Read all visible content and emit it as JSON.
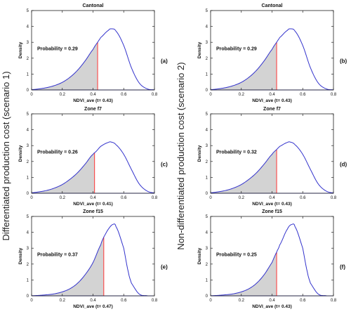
{
  "row_labels": {
    "left": "Differentiated production cost (scenario 1)",
    "right": "Non-differentiated production cost (scenario 2)"
  },
  "colors": {
    "curve": "#3333cc",
    "threshold": "#ff3333",
    "fill": "#d3d3d3",
    "axis": "#222222"
  },
  "chart_data": [
    {
      "type": "area",
      "panel": "(a)",
      "title": "Cantonal",
      "xlabel": "NDVI_ave (t= 0.43)",
      "ylabel": "Density",
      "probability_label": "Probability = 0.29",
      "xlim": [
        0,
        0.8
      ],
      "ylim": [
        0,
        5
      ],
      "xticks": [
        0,
        0.2,
        0.4,
        0.6,
        0.8
      ],
      "yticks": [
        0,
        1,
        2,
        3,
        4,
        5
      ],
      "threshold": 0.43,
      "x": [
        0,
        0.05,
        0.1,
        0.15,
        0.2,
        0.25,
        0.3,
        0.35,
        0.4,
        0.43,
        0.45,
        0.5,
        0.52,
        0.55,
        0.6,
        0.65,
        0.7,
        0.75,
        0.8
      ],
      "y": [
        0.02,
        0.07,
        0.15,
        0.28,
        0.48,
        0.8,
        1.25,
        1.85,
        2.55,
        3.0,
        3.3,
        3.75,
        3.85,
        3.7,
        2.8,
        1.4,
        0.45,
        0.08,
        0.01
      ]
    },
    {
      "type": "area",
      "panel": "(b)",
      "title": "Cantonal",
      "xlabel": "NDVI_ave (t= 0.43)",
      "ylabel": "Density",
      "probability_label": "Probability = 0.29",
      "xlim": [
        0,
        0.8
      ],
      "ylim": [
        0,
        5
      ],
      "xticks": [
        0,
        0.2,
        0.4,
        0.6,
        0.8
      ],
      "yticks": [
        0,
        1,
        2,
        3,
        4,
        5
      ],
      "threshold": 0.43,
      "x": [
        0,
        0.05,
        0.1,
        0.15,
        0.2,
        0.25,
        0.3,
        0.35,
        0.4,
        0.43,
        0.45,
        0.5,
        0.52,
        0.55,
        0.6,
        0.65,
        0.7,
        0.75,
        0.8
      ],
      "y": [
        0.02,
        0.07,
        0.15,
        0.28,
        0.48,
        0.8,
        1.25,
        1.85,
        2.55,
        3.0,
        3.3,
        3.75,
        3.85,
        3.7,
        2.8,
        1.4,
        0.45,
        0.08,
        0.01
      ]
    },
    {
      "type": "area",
      "panel": "(c)",
      "title": "Zone f7",
      "xlabel": "NDVI_ave (t= 0.41)",
      "ylabel": "Density",
      "probability_label": "Probability = 0.26",
      "xlim": [
        0,
        0.8
      ],
      "ylim": [
        0,
        5
      ],
      "xticks": [
        0,
        0.2,
        0.4,
        0.6,
        0.8
      ],
      "yticks": [
        0,
        1,
        2,
        3,
        4,
        5
      ],
      "threshold": 0.41,
      "x": [
        0,
        0.05,
        0.1,
        0.15,
        0.2,
        0.25,
        0.3,
        0.35,
        0.4,
        0.41,
        0.45,
        0.5,
        0.52,
        0.55,
        0.6,
        0.65,
        0.7,
        0.75,
        0.8
      ],
      "y": [
        0.03,
        0.09,
        0.18,
        0.33,
        0.55,
        0.88,
        1.3,
        1.85,
        2.45,
        2.55,
        2.95,
        3.2,
        3.22,
        3.05,
        2.45,
        1.5,
        0.6,
        0.15,
        0.02
      ]
    },
    {
      "type": "area",
      "panel": "(d)",
      "title": "Zone f7",
      "xlabel": "NDVI_ave (t= 0.43)",
      "ylabel": "Density",
      "probability_label": "Probability = 0.32",
      "xlim": [
        0,
        0.8
      ],
      "ylim": [
        0,
        5
      ],
      "xticks": [
        0,
        0.2,
        0.4,
        0.6,
        0.8
      ],
      "yticks": [
        0,
        1,
        2,
        3,
        4,
        5
      ],
      "threshold": 0.43,
      "x": [
        0,
        0.05,
        0.1,
        0.15,
        0.2,
        0.25,
        0.3,
        0.35,
        0.4,
        0.43,
        0.45,
        0.5,
        0.52,
        0.55,
        0.6,
        0.65,
        0.7,
        0.75,
        0.8
      ],
      "y": [
        0.03,
        0.09,
        0.18,
        0.33,
        0.55,
        0.88,
        1.3,
        1.85,
        2.45,
        2.75,
        2.95,
        3.2,
        3.22,
        3.05,
        2.45,
        1.5,
        0.6,
        0.15,
        0.02
      ]
    },
    {
      "type": "area",
      "panel": "(e)",
      "title": "Zone f15",
      "xlabel": "NDVI_ave (t= 0.47)",
      "ylabel": "Density",
      "probability_label": "Probability = 0.37",
      "xlim": [
        0,
        0.8
      ],
      "ylim": [
        0,
        5
      ],
      "xticks": [
        0,
        0.2,
        0.4,
        0.6,
        0.8
      ],
      "yticks": [
        0,
        1,
        2,
        3,
        4,
        5
      ],
      "threshold": 0.47,
      "x": [
        0,
        0.05,
        0.1,
        0.15,
        0.2,
        0.25,
        0.3,
        0.35,
        0.4,
        0.45,
        0.47,
        0.5,
        0.53,
        0.55,
        0.6,
        0.63,
        0.65,
        0.7,
        0.75,
        0.8
      ],
      "y": [
        0.01,
        0.03,
        0.07,
        0.13,
        0.25,
        0.45,
        0.8,
        1.35,
        2.1,
        3.2,
        3.7,
        4.2,
        4.5,
        4.35,
        3.0,
        1.5,
        0.8,
        0.12,
        0.01,
        0.0
      ]
    },
    {
      "type": "area",
      "panel": "(f)",
      "title": "Zone f15",
      "xlabel": "NDVI_ave (t= 0.43)",
      "ylabel": "Density",
      "probability_label": "Probability = 0.25",
      "xlim": [
        0,
        0.8
      ],
      "ylim": [
        0,
        5
      ],
      "xticks": [
        0,
        0.2,
        0.4,
        0.6,
        0.8
      ],
      "yticks": [
        0,
        1,
        2,
        3,
        4,
        5
      ],
      "threshold": 0.43,
      "x": [
        0,
        0.05,
        0.1,
        0.15,
        0.2,
        0.25,
        0.3,
        0.35,
        0.4,
        0.43,
        0.45,
        0.5,
        0.53,
        0.55,
        0.6,
        0.63,
        0.65,
        0.7,
        0.75,
        0.8
      ],
      "y": [
        0.01,
        0.03,
        0.07,
        0.13,
        0.25,
        0.45,
        0.8,
        1.35,
        2.1,
        2.75,
        3.2,
        4.2,
        4.5,
        4.35,
        3.0,
        1.5,
        0.8,
        0.12,
        0.01,
        0.0
      ]
    }
  ]
}
